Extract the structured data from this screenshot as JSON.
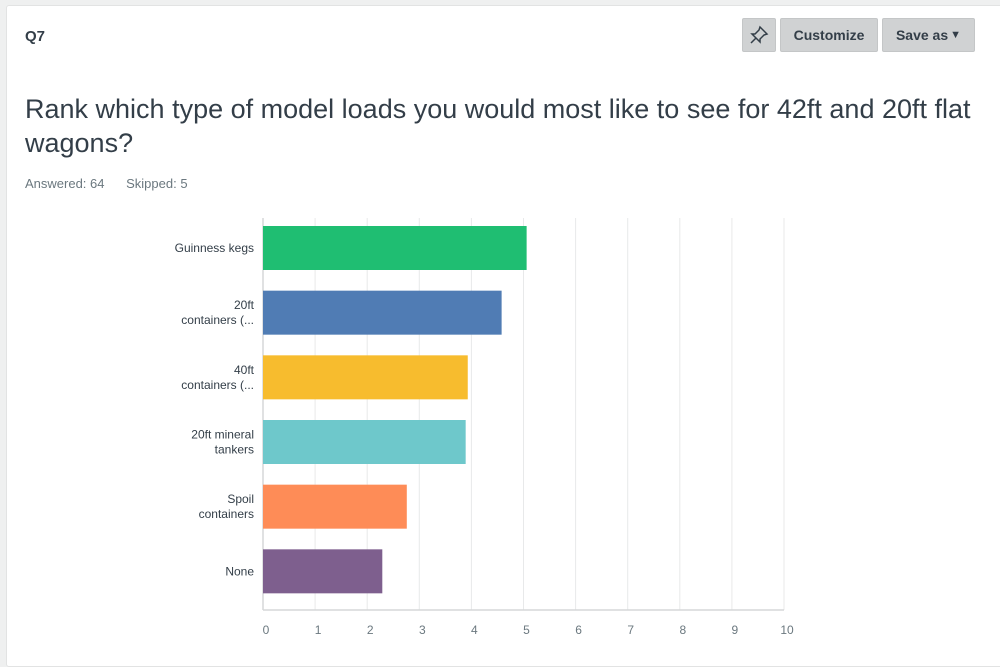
{
  "header": {
    "question_number": "Q7",
    "pin_icon": "pin-icon",
    "customize_label": "Customize",
    "save_as_label": "Save as",
    "save_as_icon": "caret-down-icon"
  },
  "question": {
    "title": "Rank which type of model loads you would most like to see for 42ft and 20ft flat wagons?",
    "answered": "Answered: 64",
    "skipped": "Skipped: 5"
  },
  "chart_data": {
    "type": "bar",
    "orientation": "horizontal",
    "categories": [
      [
        "Guinness kegs"
      ],
      [
        "20ft",
        "containers (..."
      ],
      [
        "40ft",
        "containers (..."
      ],
      [
        "20ft mineral",
        "tankers"
      ],
      [
        "Spoil",
        "containers"
      ],
      [
        "None"
      ]
    ],
    "values": [
      5.06,
      4.58,
      3.93,
      3.89,
      2.76,
      2.29
    ],
    "colors": [
      "#1fbe72",
      "#507cb4",
      "#f7bc2e",
      "#6ec8cb",
      "#fe8c57",
      "#7e5f8e"
    ],
    "xlim": [
      0,
      10
    ],
    "xticks": [
      "0",
      "1",
      "2",
      "3",
      "4",
      "5",
      "6",
      "7",
      "8",
      "9",
      "10"
    ],
    "grid": true,
    "title": "",
    "xlabel": "",
    "ylabel": ""
  }
}
